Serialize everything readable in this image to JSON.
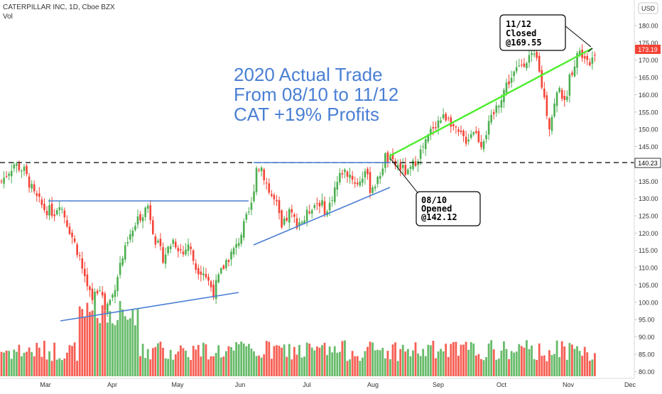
{
  "header": {
    "symbol_line": "CATERPILLAR INC, 1D, Cboe BZX",
    "volume_label": "Vol",
    "currency": "USD"
  },
  "annotation": {
    "line1": "2020 Actual Trade",
    "line2": "From 08/10 to 11/12",
    "line3": "CAT +19% Profits"
  },
  "callouts": {
    "close": {
      "line1": "11/12",
      "line2": "Closed",
      "line3": "@169.55"
    },
    "open": {
      "line1": "08/10",
      "line2": "Opened",
      "line3": "@142.12"
    }
  },
  "price_badges": {
    "last": "173.19",
    "level": "140.23"
  },
  "colors": {
    "up": "#4caf50",
    "down": "#f44336",
    "trendline": "#4a7fd4",
    "trade_line": "#4cee2c",
    "annotation_text": "#4a7fd4",
    "last_badge": "#f44336"
  },
  "chart_data": {
    "type": "candlestick",
    "title": "CATERPILLAR INC, 1D, Cboe BZX",
    "y_axis": {
      "ticks": [
        "180.00",
        "175.00",
        "170.00",
        "165.00",
        "160.00",
        "155.00",
        "150.00",
        "145.00",
        "140.00",
        "135.00",
        "130.00",
        "125.00",
        "120.00",
        "115.00",
        "110.00",
        "105.00",
        "100.00",
        "95.00",
        "90.00",
        "85.00",
        "80.00"
      ],
      "range": [
        79,
        183
      ],
      "position": "right"
    },
    "x_axis": {
      "ticks": [
        "Mar",
        "Apr",
        "May",
        "Jun",
        "Jul",
        "Aug",
        "Sep",
        "Oct",
        "Nov",
        "Dec"
      ]
    },
    "horizontal_level": 140.23,
    "trade": {
      "open_date": "08/10",
      "open_price": 142.12,
      "close_date": "11/12",
      "close_price": 169.55,
      "return": "+19%"
    },
    "last_price": 173.19,
    "waypoints": [
      {
        "day": 0,
        "price": 135
      },
      {
        "day": 5,
        "price": 140
      },
      {
        "day": 9,
        "price": 138
      },
      {
        "day": 13,
        "price": 131
      },
      {
        "day": 17,
        "price": 127
      },
      {
        "day": 21,
        "price": 126
      },
      {
        "day": 23,
        "price": 129
      },
      {
        "day": 27,
        "price": 121
      },
      {
        "day": 31,
        "price": 113
      },
      {
        "day": 34,
        "price": 104
      },
      {
        "day": 36,
        "price": 101
      },
      {
        "day": 39,
        "price": 105
      },
      {
        "day": 41,
        "price": 98
      },
      {
        "day": 44,
        "price": 102
      },
      {
        "day": 47,
        "price": 111
      },
      {
        "day": 51,
        "price": 119
      },
      {
        "day": 55,
        "price": 125
      },
      {
        "day": 58,
        "price": 128
      },
      {
        "day": 61,
        "price": 118
      },
      {
        "day": 64,
        "price": 113
      },
      {
        "day": 68,
        "price": 118
      },
      {
        "day": 72,
        "price": 114
      },
      {
        "day": 74,
        "price": 117
      },
      {
        "day": 77,
        "price": 110
      },
      {
        "day": 80,
        "price": 109
      },
      {
        "day": 84,
        "price": 103
      },
      {
        "day": 86,
        "price": 107
      },
      {
        "day": 89,
        "price": 112
      },
      {
        "day": 93,
        "price": 116
      },
      {
        "day": 96,
        "price": 122
      },
      {
        "day": 99,
        "price": 128
      },
      {
        "day": 101,
        "price": 139
      },
      {
        "day": 103,
        "price": 139
      },
      {
        "day": 106,
        "price": 132
      },
      {
        "day": 109,
        "price": 128
      },
      {
        "day": 111,
        "price": 121
      },
      {
        "day": 114,
        "price": 126
      },
      {
        "day": 117,
        "price": 123
      },
      {
        "day": 120,
        "price": 124
      },
      {
        "day": 123,
        "price": 128
      },
      {
        "day": 126,
        "price": 129
      },
      {
        "day": 129,
        "price": 126
      },
      {
        "day": 132,
        "price": 133
      },
      {
        "day": 135,
        "price": 138
      },
      {
        "day": 138,
        "price": 137
      },
      {
        "day": 141,
        "price": 134
      },
      {
        "day": 144,
        "price": 138
      },
      {
        "day": 146,
        "price": 133
      },
      {
        "day": 149,
        "price": 135
      },
      {
        "day": 152,
        "price": 142
      },
      {
        "day": 155,
        "price": 140
      },
      {
        "day": 158,
        "price": 139
      },
      {
        "day": 161,
        "price": 137
      },
      {
        "day": 164,
        "price": 141
      },
      {
        "day": 168,
        "price": 146
      },
      {
        "day": 171,
        "price": 151
      },
      {
        "day": 174,
        "price": 153
      },
      {
        "day": 177,
        "price": 154
      },
      {
        "day": 180,
        "price": 149
      },
      {
        "day": 184,
        "price": 147
      },
      {
        "day": 187,
        "price": 150
      },
      {
        "day": 190,
        "price": 146
      },
      {
        "day": 193,
        "price": 151
      },
      {
        "day": 197,
        "price": 158
      },
      {
        "day": 200,
        "price": 163
      },
      {
        "day": 203,
        "price": 166
      },
      {
        "day": 206,
        "price": 169
      },
      {
        "day": 209,
        "price": 171
      },
      {
        "day": 212,
        "price": 170
      },
      {
        "day": 215,
        "price": 159
      },
      {
        "day": 217,
        "price": 151
      },
      {
        "day": 219,
        "price": 157
      },
      {
        "day": 221,
        "price": 163
      },
      {
        "day": 223,
        "price": 157
      },
      {
        "day": 225,
        "price": 165
      },
      {
        "day": 228,
        "price": 172
      },
      {
        "day": 231,
        "price": 172
      },
      {
        "day": 233,
        "price": 169
      },
      {
        "day": 235,
        "price": 173
      }
    ],
    "volume_axis": "Vol"
  }
}
